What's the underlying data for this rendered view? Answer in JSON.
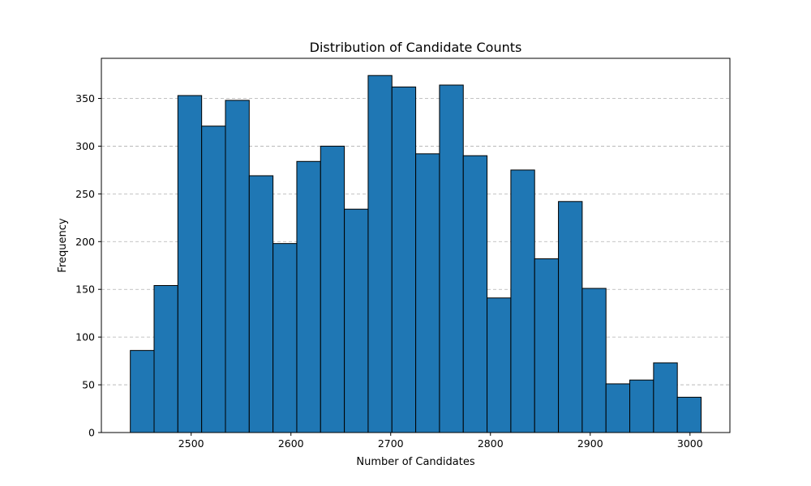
{
  "chart_data": {
    "type": "bar",
    "title": "Distribution of Candidate Counts",
    "xlabel": "Number of Candidates",
    "ylabel": "Frequency",
    "bin_edges": [
      2439.0,
      2462.84,
      2486.68,
      2510.52,
      2534.36,
      2558.2,
      2582.04,
      2605.88,
      2629.72,
      2653.56,
      2677.4,
      2701.24,
      2725.08,
      2748.92,
      2772.76,
      2796.6,
      2820.44,
      2844.28,
      2868.12,
      2891.96,
      2915.8,
      2939.64,
      2963.48,
      2987.32,
      3011.16
    ],
    "values": [
      86,
      154,
      353,
      321,
      348,
      269,
      198,
      284,
      300,
      234,
      374,
      362,
      292,
      364,
      290,
      141,
      275,
      182,
      242,
      151,
      51,
      55,
      73,
      37
    ],
    "xlim": [
      2410,
      3040
    ],
    "ylim": [
      0,
      392
    ],
    "x_ticks": [
      2500,
      2600,
      2700,
      2800,
      2900,
      3000
    ],
    "y_ticks": [
      0,
      50,
      100,
      150,
      200,
      250,
      300,
      350
    ],
    "grid": "y-dashed",
    "bar_color": "#1f77b4",
    "edge_color": "#000000",
    "grid_color": "#b0b0b0"
  }
}
